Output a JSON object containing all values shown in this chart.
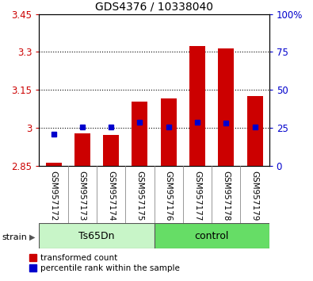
{
  "title": "GDS4376 / 10338040",
  "samples": [
    "GSM957172",
    "GSM957173",
    "GSM957174",
    "GSM957175",
    "GSM957176",
    "GSM957177",
    "GSM957178",
    "GSM957179"
  ],
  "red_bottom": [
    2.85,
    2.85,
    2.85,
    2.85,
    2.85,
    2.85,
    2.85,
    2.85
  ],
  "red_top": [
    2.862,
    2.978,
    2.972,
    3.105,
    3.115,
    3.325,
    3.315,
    3.125
  ],
  "blue_vals": [
    2.975,
    3.003,
    3.003,
    3.022,
    3.003,
    3.022,
    3.018,
    3.003
  ],
  "ylim_left": [
    2.85,
    3.45
  ],
  "ylim_right": [
    0,
    100
  ],
  "yticks_left": [
    2.85,
    3.0,
    3.15,
    3.3,
    3.45
  ],
  "yticks_right": [
    0,
    25,
    50,
    75,
    100
  ],
  "ytick_labels_left": [
    "2.85",
    "3",
    "3.15",
    "3.3",
    "3.45"
  ],
  "ytick_labels_right": [
    "0",
    "25",
    "50",
    "75",
    "100%"
  ],
  "hlines": [
    3.0,
    3.15,
    3.3
  ],
  "groups": [
    {
      "label": "Ts65Dn",
      "start": 0,
      "end": 3,
      "color": "#c8f5c8"
    },
    {
      "label": "control",
      "start": 4,
      "end": 7,
      "color": "#66dd66"
    }
  ],
  "strain_label": "strain",
  "red_color": "#cc0000",
  "blue_color": "#0000cc",
  "legend_items": [
    "transformed count",
    "percentile rank within the sample"
  ],
  "bar_width": 0.55,
  "title_fontsize": 10,
  "tick_fontsize": 8.5,
  "label_fontsize": 7.5,
  "group_fontsize": 9
}
